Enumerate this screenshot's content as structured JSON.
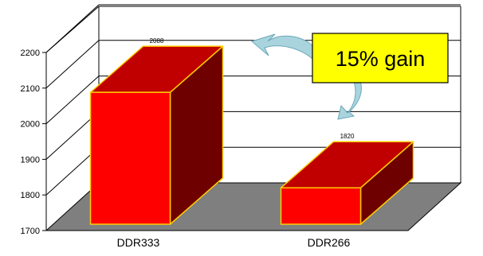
{
  "chart_data": {
    "type": "bar",
    "categories": [
      "DDR333",
      "DDR266"
    ],
    "values": [
      2088,
      1820
    ],
    "ylim": [
      1700,
      2200
    ],
    "yticks": [
      "1700",
      "1800",
      "1900",
      "2000",
      "2100",
      "2200"
    ],
    "data_labels": [
      "2088",
      "1820"
    ],
    "grid": true,
    "colors": {
      "bar_front": "#ff0000",
      "bar_top": "#c00000",
      "bar_side": "#6e0000",
      "bar_edge": "#ffcc00",
      "floor": "#7f7f7f",
      "callout_fill": "#ffff00",
      "arrow_fill": "#a9d4de"
    },
    "annotation": "15% gain"
  }
}
